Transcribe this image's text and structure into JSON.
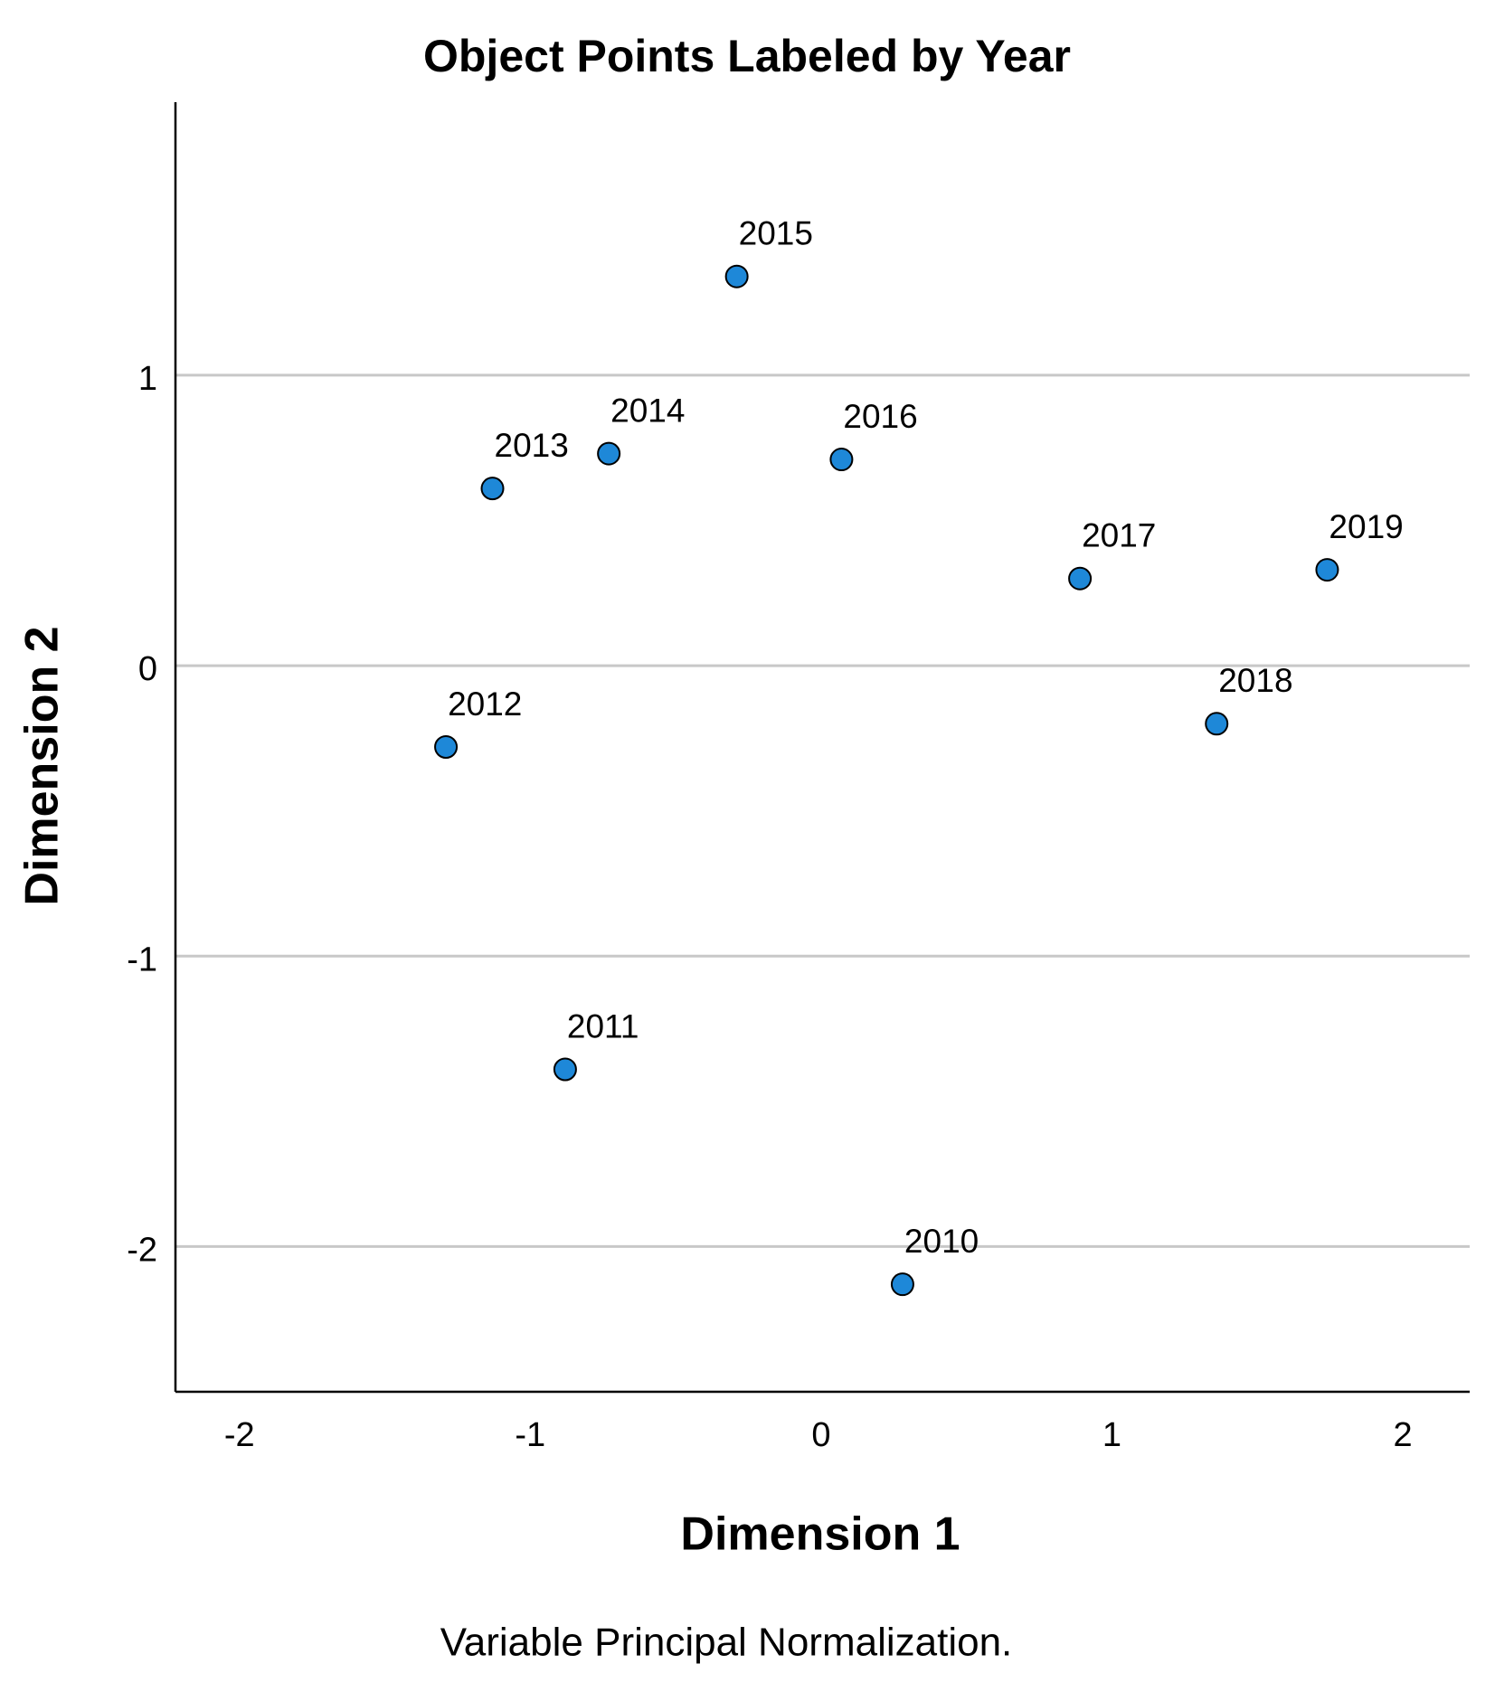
{
  "chart_data": {
    "type": "scatter",
    "title": "Object Points Labeled by Year",
    "x_label": "Dimension 1",
    "y_label": "Dimension 2",
    "footnote": "Variable Principal Normalization.",
    "labels": [
      "2010",
      "2011",
      "2012",
      "2013",
      "2014",
      "2015",
      "2016",
      "2017",
      "2018",
      "2019"
    ],
    "x": [
      0.28,
      -0.88,
      -1.29,
      -1.13,
      -0.73,
      -0.29,
      0.07,
      0.89,
      1.36,
      1.74
    ],
    "y": [
      -2.13,
      -1.39,
      -0.28,
      0.61,
      0.73,
      1.34,
      0.71,
      0.3,
      -0.2,
      0.33
    ],
    "color": "#1e88d8",
    "xlim": [
      -2.22,
      2.23
    ],
    "ylim": [
      -2.5,
      1.94
    ],
    "xticks": [
      -2,
      -1,
      0,
      1,
      2
    ],
    "yticks": [
      -2,
      -1,
      0,
      1
    ],
    "grid": "y"
  }
}
